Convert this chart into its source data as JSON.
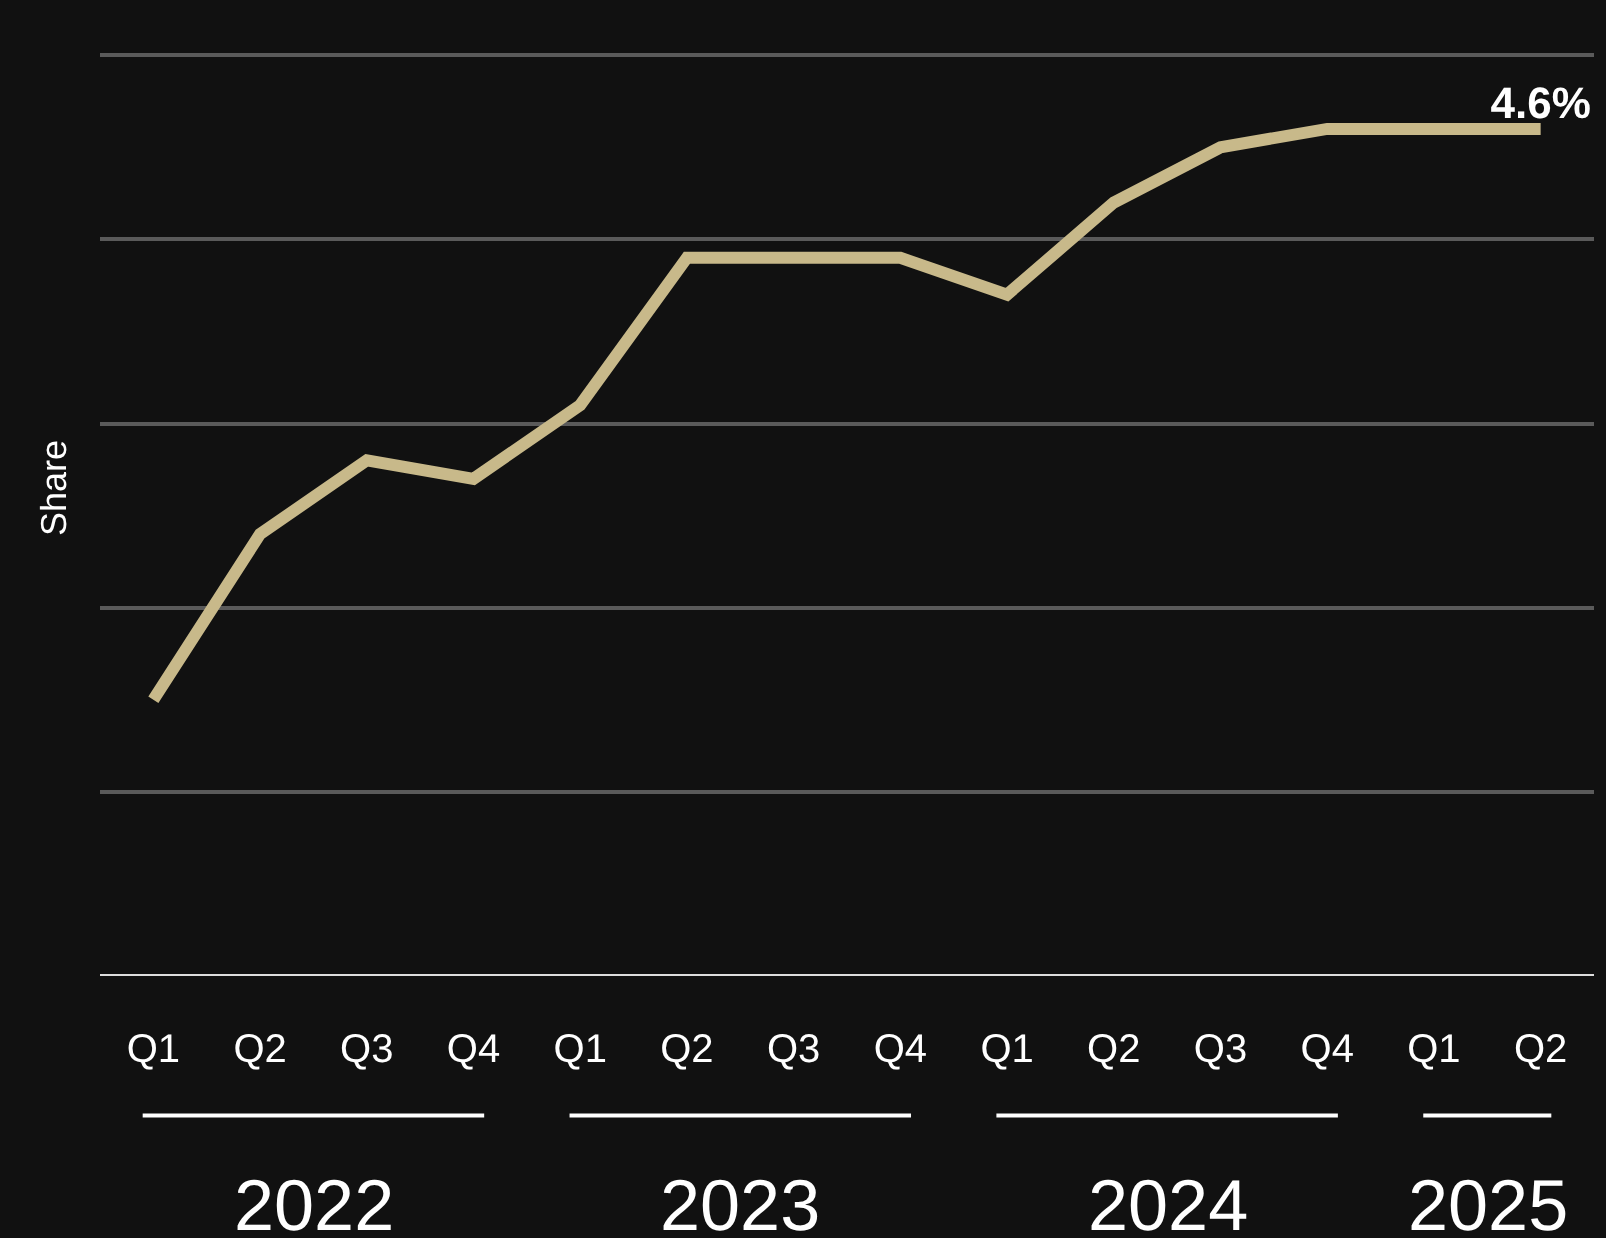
{
  "chart_data": {
    "type": "line",
    "ylabel": "Share",
    "ylim": [
      0,
      5.3
    ],
    "tick_labels": "x",
    "grid": "y",
    "marker": "none",
    "line_style": "solid",
    "categories": [
      "Q1",
      "Q2",
      "Q3",
      "Q4",
      "Q1",
      "Q2",
      "Q3",
      "Q4",
      "Q1",
      "Q2",
      "Q3",
      "Q4",
      "Q1",
      "Q2"
    ],
    "series": [
      {
        "color": "#c8b98a",
        "values": [
          1.5,
          2.4,
          2.8,
          2.7,
          3.1,
          3.9,
          3.9,
          3.9,
          3.7,
          4.2,
          4.5,
          4.6,
          4.6,
          4.6
        ],
        "value_labels": [
          null,
          null,
          null,
          null,
          null,
          null,
          null,
          null,
          null,
          null,
          null,
          null,
          null,
          "4.6%"
        ]
      }
    ],
    "annotations": [
      "2022",
      "2023",
      "2024",
      "2025"
    ]
  }
}
